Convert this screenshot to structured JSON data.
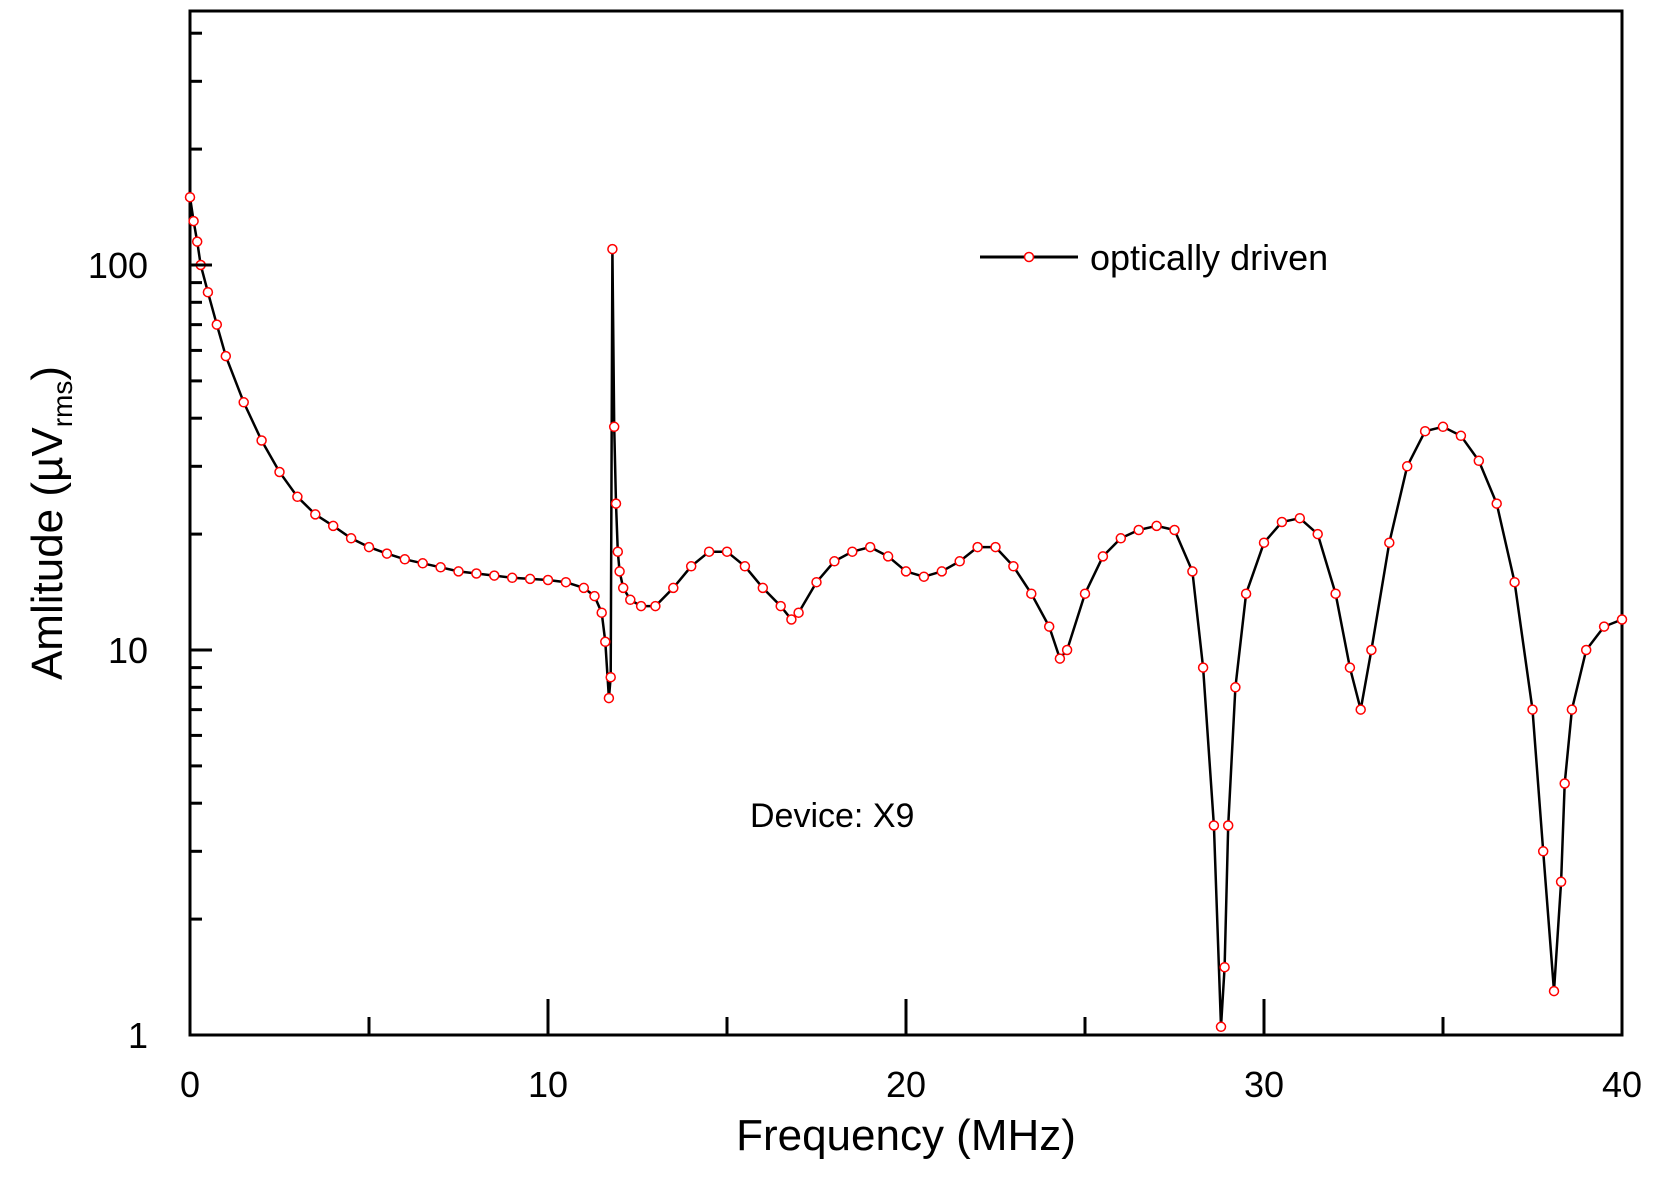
{
  "chart_data": {
    "type": "line",
    "title": "",
    "xlabel": "Frequency (MHz)",
    "ylabel": {
      "prefix": "Amlitude (",
      "mu": "µ",
      "unit": "V",
      "subscript": "rms",
      "suffix": ")"
    },
    "xlim": [
      0,
      40
    ],
    "ylim": [
      1,
      400
    ],
    "yscale": "log",
    "x_ticks": [
      0,
      10,
      20,
      30,
      40
    ],
    "x_tick_labels": [
      "0",
      "10",
      "20",
      "30",
      "40"
    ],
    "x_minor_ticks": [
      5,
      15,
      25,
      35
    ],
    "y_ticks": [
      1,
      10,
      100
    ],
    "y_tick_labels": [
      "1",
      "10",
      "100"
    ],
    "y_minor_ticks": [
      2,
      3,
      4,
      5,
      6,
      7,
      8,
      9,
      20,
      30,
      40,
      50,
      60,
      70,
      80,
      90,
      200,
      300,
      400
    ],
    "grid": false,
    "legend": {
      "position": "top-right",
      "entries": [
        "optically driven"
      ]
    },
    "annotation": "Device: X9",
    "series": [
      {
        "name": "optically driven",
        "line_color": "#000000",
        "marker_color": "#ff0000",
        "marker": "open-circle",
        "x": [
          0.0,
          0.1,
          0.2,
          0.3,
          0.5,
          0.75,
          1.0,
          1.5,
          2.0,
          2.5,
          3.0,
          3.5,
          4.0,
          4.5,
          5.0,
          5.5,
          6.0,
          6.5,
          7.0,
          7.5,
          8.0,
          8.5,
          9.0,
          9.5,
          10.0,
          10.5,
          11.0,
          11.3,
          11.5,
          11.6,
          11.7,
          11.75,
          11.8,
          11.85,
          11.9,
          11.95,
          12.0,
          12.1,
          12.3,
          12.6,
          13.0,
          13.5,
          14.0,
          14.5,
          15.0,
          15.5,
          16.0,
          16.5,
          16.8,
          17.0,
          17.5,
          18.0,
          18.5,
          19.0,
          19.5,
          20.0,
          20.5,
          21.0,
          21.5,
          22.0,
          22.5,
          23.0,
          23.5,
          24.0,
          24.3,
          24.5,
          25.0,
          25.5,
          26.0,
          26.5,
          27.0,
          27.5,
          28.0,
          28.3,
          28.6,
          28.8,
          28.9,
          29.0,
          29.2,
          29.5,
          30.0,
          30.5,
          31.0,
          31.5,
          32.0,
          32.4,
          32.7,
          33.0,
          33.5,
          34.0,
          34.5,
          35.0,
          35.5,
          36.0,
          36.5,
          37.0,
          37.5,
          37.8,
          38.1,
          38.3,
          38.4,
          38.6,
          39.0,
          39.5,
          40.0
        ],
        "y": [
          150,
          130,
          115,
          100,
          85,
          70,
          58,
          44,
          35,
          29,
          25,
          22.5,
          21,
          19.5,
          18.5,
          17.8,
          17.2,
          16.8,
          16.4,
          16,
          15.8,
          15.6,
          15.4,
          15.3,
          15.2,
          15.0,
          14.5,
          13.8,
          12.5,
          10.5,
          7.5,
          8.5,
          110,
          38,
          24,
          18,
          16,
          14.5,
          13.5,
          13,
          13,
          14.5,
          16.5,
          18,
          18,
          16.5,
          14.5,
          13,
          12,
          12.5,
          15,
          17,
          18,
          18.5,
          17.5,
          16,
          15.5,
          16,
          17,
          18.5,
          18.5,
          16.5,
          14,
          11.5,
          9.5,
          10,
          14,
          17.5,
          19.5,
          20.5,
          21,
          20.5,
          16,
          9,
          3.5,
          1.05,
          1.5,
          3.5,
          8,
          14,
          19,
          21.5,
          22,
          20,
          14,
          9,
          7,
          10,
          19,
          30,
          37,
          38,
          36,
          31,
          24,
          15,
          7,
          3,
          1.3,
          2.5,
          4.5,
          7,
          10,
          11.5,
          12
        ]
      }
    ]
  }
}
